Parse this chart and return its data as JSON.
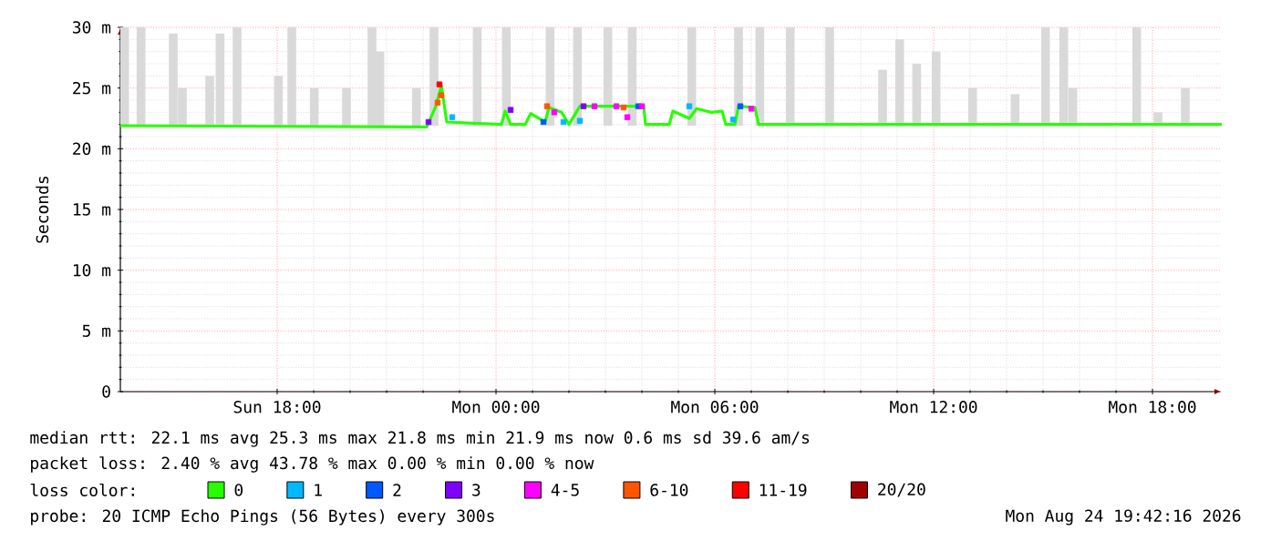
{
  "chart_data": {
    "type": "line",
    "ylabel": "Seconds",
    "legend_title": "loss color:",
    "legend": "bottom",
    "grid": true,
    "xlim": [
      "2026-08-23T13:42",
      "2026-08-24T19:54"
    ],
    "ylim": [
      0,
      30
    ],
    "xticks": [
      {
        "value": "2026-08-23T18:00",
        "label": "Sun 18:00"
      },
      {
        "value": "2026-08-24T00:00",
        "label": "Mon 00:00"
      },
      {
        "value": "2026-08-24T06:00",
        "label": "Mon 06:00"
      },
      {
        "value": "2026-08-24T12:00",
        "label": "Mon 12:00"
      },
      {
        "value": "2026-08-24T18:00",
        "label": "Mon 18:00"
      }
    ],
    "yticks": [
      0,
      {
        "value": 5,
        "label": "5 m"
      },
      {
        "value": 10,
        "label": "10 m"
      },
      {
        "value": 15,
        "label": "15 m"
      },
      {
        "value": 20,
        "label": "20 m"
      },
      {
        "value": 25,
        "label": "25 m"
      },
      {
        "value": 30,
        "label": "30 m"
      }
    ],
    "series": [
      {
        "type": "bar",
        "color": "#d9d9d9",
        "x": [
          "2026-08-23T13:49",
          "2026-08-23T14:16",
          "2026-08-23T15:09",
          "2026-08-23T15:24",
          "2026-08-23T16:09",
          "2026-08-23T16:26",
          "2026-08-23T16:54",
          "2026-08-23T18:02",
          "2026-08-23T18:24",
          "2026-08-23T19:01",
          "2026-08-23T19:54",
          "2026-08-23T20:36",
          "2026-08-23T20:49",
          "2026-08-23T21:49",
          "2026-08-23T22:18",
          "2026-08-23T23:29",
          "2026-08-24T00:17",
          "2026-08-24T01:29",
          "2026-08-24T02:14",
          "2026-08-24T03:04",
          "2026-08-24T03:44",
          "2026-08-24T05:22",
          "2026-08-24T06:39",
          "2026-08-24T07:14",
          "2026-08-24T08:04",
          "2026-08-24T09:09",
          "2026-08-24T10:36",
          "2026-08-24T11:04",
          "2026-08-24T11:32",
          "2026-08-24T12:04",
          "2026-08-24T13:04",
          "2026-08-24T14:14",
          "2026-08-24T15:04",
          "2026-08-24T15:34",
          "2026-08-24T15:49",
          "2026-08-24T17:34",
          "2026-08-24T18:09",
          "2026-08-24T18:54"
        ],
        "base": [
          21.9,
          21.9,
          21.9,
          21.9,
          21.9,
          21.9,
          21.9,
          21.9,
          21.9,
          21.9,
          21.9,
          21.9,
          21.9,
          21.9,
          21.9,
          21.9,
          21.9,
          21.9,
          21.9,
          21.9,
          21.9,
          21.9,
          21.9,
          21.9,
          21.9,
          21.9,
          21.9,
          21.9,
          21.9,
          21.9,
          21.9,
          21.9,
          21.9,
          21.9,
          21.9,
          21.9,
          21.9,
          21.9
        ],
        "values": [
          8.1,
          8.1,
          7.6,
          3.1,
          4.1,
          7.6,
          8.1,
          4.1,
          8.1,
          3.1,
          3.1,
          8.1,
          6.1,
          3.1,
          8.1,
          8.1,
          8.1,
          8.1,
          8.1,
          8.1,
          8.1,
          8.1,
          8.1,
          8.1,
          8.1,
          8.1,
          4.6,
          7.1,
          5.1,
          6.1,
          3.1,
          2.6,
          8.1,
          8.1,
          3.1,
          8.1,
          1.1,
          3.1
        ]
      },
      {
        "name": "0",
        "color": "#26ff00",
        "x": [
          "2026-08-23T13:42",
          "2026-08-23T22:06",
          "2026-08-23T22:21",
          "2026-08-23T22:30",
          "2026-08-23T22:39",
          "2026-08-24T00:09",
          "2026-08-24T00:15",
          "2026-08-24T00:24",
          "2026-08-24T00:48",
          "2026-08-24T00:57",
          "2026-08-24T01:21",
          "2026-08-24T01:27",
          "2026-08-24T01:48",
          "2026-08-24T02:00",
          "2026-08-24T02:18",
          "2026-08-24T04:03",
          "2026-08-24T04:06",
          "2026-08-24T04:45",
          "2026-08-24T04:51",
          "2026-08-24T05:18",
          "2026-08-24T05:30",
          "2026-08-24T05:54",
          "2026-08-24T06:12",
          "2026-08-24T06:18",
          "2026-08-24T06:33",
          "2026-08-24T06:39",
          "2026-08-24T07:06",
          "2026-08-24T07:12",
          "2026-08-24T19:54"
        ],
        "values": [
          21.9,
          21.8,
          23.5,
          25.2,
          22.2,
          22.0,
          23.1,
          22.0,
          22.0,
          22.9,
          22.2,
          23.4,
          23.0,
          22.0,
          23.5,
          23.5,
          22.0,
          22.0,
          23.1,
          22.5,
          23.3,
          23.0,
          23.1,
          22.0,
          22.0,
          23.5,
          23.4,
          22.0,
          22.0
        ]
      },
      {
        "name": "1",
        "type": "scatter",
        "marker": "square",
        "color": "#00b8ff",
        "x": [
          "2026-08-23T22:48",
          "2026-08-24T01:51",
          "2026-08-24T02:18",
          "2026-08-24T05:18",
          "2026-08-24T06:30"
        ],
        "values": [
          22.6,
          22.2,
          22.3,
          23.5,
          22.4
        ]
      },
      {
        "name": "2",
        "type": "scatter",
        "marker": "square",
        "color": "#0059ff",
        "x": [
          "2026-08-24T01:18",
          "2026-08-24T03:54",
          "2026-08-24T06:42"
        ],
        "values": [
          22.2,
          23.5,
          23.5
        ]
      },
      {
        "name": "3",
        "type": "scatter",
        "marker": "square",
        "color": "#7e00ff",
        "x": [
          "2026-08-23T22:09",
          "2026-08-24T00:24",
          "2026-08-24T02:24"
        ],
        "values": [
          22.2,
          23.2,
          23.5
        ]
      },
      {
        "name": "4-5",
        "type": "scatter",
        "marker": "square",
        "color": "#ff00ff",
        "x": [
          "2026-08-24T01:36",
          "2026-08-24T02:42",
          "2026-08-24T03:18",
          "2026-08-24T03:36",
          "2026-08-24T04:00",
          "2026-08-24T07:00"
        ],
        "values": [
          23.0,
          23.5,
          23.5,
          22.6,
          23.5,
          23.3
        ]
      },
      {
        "name": "6-10",
        "type": "scatter",
        "marker": "square",
        "color": "#ff5500",
        "x": [
          "2026-08-23T22:24",
          "2026-08-23T22:30",
          "2026-08-24T01:24",
          "2026-08-24T03:30"
        ],
        "values": [
          23.8,
          24.4,
          23.5,
          23.4
        ]
      },
      {
        "name": "11-19",
        "type": "scatter",
        "marker": "square",
        "color": "#ff0000",
        "x": [
          "2026-08-23T22:27"
        ],
        "values": [
          25.3
        ]
      },
      {
        "name": "20/20",
        "type": "scatter",
        "color": "#a10000"
      }
    ],
    "annotations": [
      "median rtt:  22.1 ms avg  25.3 ms max  21.8 ms min  21.9 ms now  0.6 ms sd  39.6   am/s",
      "packet loss: 2.40 % avg  43.78 % max  0.00 % min  0.00 % now",
      "probe:       20 ICMP Echo Pings (56 Bytes) every 300s",
      "Mon Aug 24 19:42:16 2026"
    ]
  }
}
